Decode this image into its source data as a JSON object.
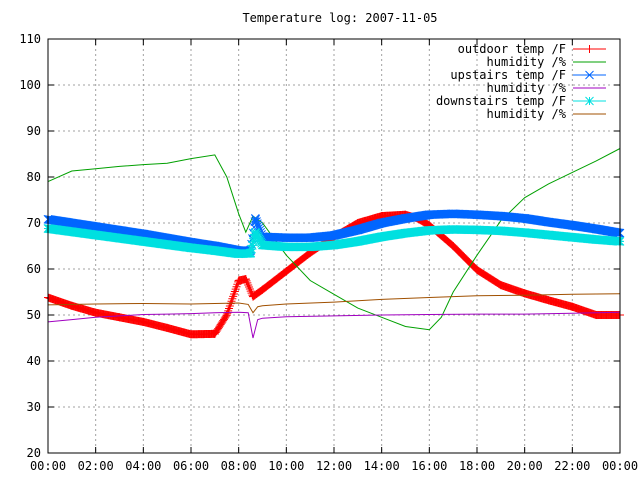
{
  "chart_data": {
    "type": "line",
    "title": "Temperature log: 2007-11-05",
    "xlabel": "",
    "ylabel": "",
    "xlim": [
      0,
      24
    ],
    "ylim": [
      20,
      110
    ],
    "grid": true,
    "legend_position": "top-right",
    "x_ticks": [
      "00:00",
      "02:00",
      "04:00",
      "06:00",
      "08:00",
      "10:00",
      "12:00",
      "14:00",
      "16:00",
      "18:00",
      "20:00",
      "22:00",
      "00:00"
    ],
    "y_ticks": [
      "20",
      "30",
      "40",
      "50",
      "60",
      "70",
      "80",
      "90",
      "100",
      "110"
    ],
    "series": [
      {
        "name": "outdoor temp /F",
        "color": "#ff0000",
        "marker": "plus",
        "x": [
          0,
          1,
          2,
          3,
          4,
          5,
          6,
          7,
          7.5,
          8,
          8.3,
          8.6,
          9,
          10,
          11,
          12,
          13,
          14,
          15,
          15.5,
          16,
          17,
          18,
          19,
          20,
          21,
          22,
          23,
          24
        ],
        "y": [
          53.8,
          52,
          50.5,
          49.5,
          48.5,
          47.2,
          45.8,
          45.9,
          50,
          57.5,
          57.8,
          54,
          55.5,
          59.5,
          63.5,
          67,
          70,
          71.5,
          71.8,
          71,
          69.5,
          65,
          59.8,
          56.5,
          54.7,
          53.2,
          51.8,
          50,
          50
        ]
      },
      {
        "name": "humidity /%",
        "color": "#00a000",
        "marker": "none",
        "x": [
          0,
          1,
          2,
          3,
          4,
          5,
          6,
          7,
          7.5,
          8,
          8.3,
          8.6,
          9,
          10,
          11,
          12,
          13,
          14,
          15,
          16,
          16.5,
          17,
          18,
          19,
          20,
          21,
          22,
          23,
          24
        ],
        "y": [
          79,
          81.3,
          81.8,
          82.3,
          82.7,
          83,
          84,
          84.8,
          80,
          72,
          68,
          71.5,
          70,
          63,
          57.5,
          54.5,
          51.5,
          49.5,
          47.5,
          46.8,
          49.5,
          55,
          63,
          70.5,
          75.5,
          78.5,
          81,
          83.5,
          86.2
        ]
      },
      {
        "name": "upstairs temp /F",
        "color": "#0066ff",
        "marker": "cross",
        "x": [
          0,
          2,
          4,
          6,
          7,
          8,
          8.5,
          8.7,
          9,
          10,
          11,
          12,
          13,
          14,
          15,
          16,
          17,
          18,
          19,
          20,
          21,
          22,
          23,
          24
        ],
        "y": [
          70.8,
          69.2,
          67.6,
          65.8,
          65,
          64,
          64,
          71,
          67,
          66.8,
          66.8,
          67.3,
          68.5,
          70,
          71,
          71.8,
          72,
          71.8,
          71.5,
          71,
          70.2,
          69.5,
          68.7,
          67.8
        ]
      },
      {
        "name": "humidity /%",
        "color": "#a000c0",
        "marker": "none",
        "x": [
          0,
          1,
          2,
          3,
          4,
          5,
          6,
          7,
          8,
          8.4,
          8.6,
          8.8,
          9,
          10,
          12,
          14,
          16,
          18,
          20,
          22,
          24
        ],
        "y": [
          48.5,
          49,
          49.5,
          49.8,
          50.1,
          50.2,
          50.3,
          50.5,
          50.6,
          50.5,
          45,
          49,
          49.3,
          49.6,
          49.8,
          50,
          50.1,
          50.2,
          50.2,
          50.4,
          50.6
        ]
      },
      {
        "name": "downstairs temp /F",
        "color": "#00e0e0",
        "marker": "star",
        "x": [
          0,
          2,
          4,
          6,
          7,
          8,
          8.5,
          8.7,
          9,
          10,
          11,
          12,
          13,
          14,
          15,
          16,
          17,
          18,
          19,
          20,
          21,
          22,
          23,
          24
        ],
        "y": [
          68.8,
          67.4,
          66,
          64.6,
          64,
          63.3,
          63.4,
          68,
          65.2,
          64.8,
          64.8,
          65.2,
          66,
          67,
          67.8,
          68.4,
          68.6,
          68.5,
          68.3,
          67.9,
          67.4,
          66.9,
          66.4,
          66
        ]
      },
      {
        "name": "humidity /%",
        "color": "#a05000",
        "marker": "none",
        "x": [
          0,
          2,
          4,
          6,
          7,
          8,
          8.4,
          8.6,
          8.8,
          9,
          10,
          12,
          14,
          16,
          18,
          20,
          22,
          24
        ],
        "y": [
          52.2,
          52.4,
          52.5,
          52.4,
          52.5,
          52.6,
          52.3,
          50.5,
          51.8,
          52,
          52.4,
          52.8,
          53.4,
          53.8,
          54.2,
          54.3,
          54.5,
          54.6
        ]
      }
    ]
  }
}
